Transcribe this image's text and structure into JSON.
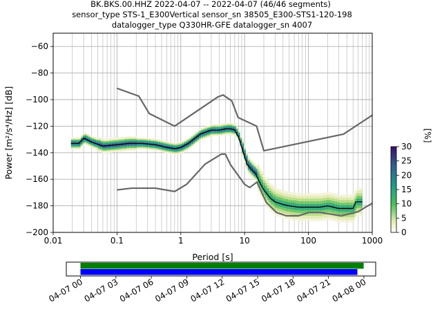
{
  "title_lines": [
    "BK.BKS.00.HHZ   2022-04-07 -- 2022-04-07  (46/46 segments)",
    "sensor_type STS-1_E300Vertical sensor_sn 38505_E300-STS1-120-198",
    "datalogger_type Q330HR-GFE datalogger_sn 4007"
  ],
  "colors": {
    "nlnm_nhnm": "#666666",
    "mean_line": "#000000",
    "timeline_green": "#008000",
    "timeline_blue": "#0000ff",
    "grid": "#b0b0b0"
  },
  "chart_data": [
    {
      "type": "heatmap",
      "xlabel": "Period [s]",
      "ylabel": "Power [m²/s⁴/Hz] [dB]",
      "xscale": "log",
      "xlim": [
        0.01,
        1000
      ],
      "ylim": [
        -200,
        -50
      ],
      "x_ticks": [
        "0.01",
        "0.1",
        "1",
        "10",
        "100",
        "1000"
      ],
      "y_ticks": [
        "−200",
        "−180",
        "−160",
        "−140",
        "−120",
        "−100",
        "−80",
        "−60"
      ],
      "grid": true,
      "colorbar": {
        "label": "[%]",
        "range": [
          0,
          30
        ],
        "ticks": [
          "0",
          "5",
          "10",
          "15",
          "20",
          "25",
          "30"
        ],
        "colormap": "pqlx"
      },
      "series": [
        {
          "name": "",
          "kind": "mean",
          "x": [
            0.019,
            0.025,
            0.03,
            0.04,
            0.06,
            0.1,
            0.15,
            0.25,
            0.4,
            0.6,
            0.8,
            1.0,
            1.3,
            2.0,
            3.0,
            4.0,
            5.0,
            6.0,
            7.0,
            8.0,
            9.0,
            10.0,
            11.0,
            13.0,
            15.0,
            17.0,
            20.0,
            25.0,
            30.0,
            40.0,
            50.0,
            70.0,
            100.0,
            150.0,
            200.0,
            300.0,
            400.0,
            500.0,
            550.0,
            700.0
          ],
          "y": [
            -133,
            -133,
            -129,
            -132,
            -135,
            -134,
            -133,
            -133,
            -134,
            -136,
            -137,
            -136,
            -133,
            -126,
            -123,
            -123,
            -122,
            -122,
            -123,
            -128,
            -136,
            -143,
            -149,
            -153,
            -156,
            -162,
            -168,
            -174,
            -177,
            -179,
            -180,
            -181,
            -181,
            -181,
            -180,
            -182,
            -182,
            -182,
            -177,
            -177
          ]
        },
        {
          "name": "",
          "kind": "nhnm",
          "x": [
            0.1,
            0.22,
            0.32,
            0.8,
            3.8,
            4.6,
            6.3,
            7.9,
            15.4,
            20.0,
            354.8,
            10000
          ],
          "y": [
            -91.5,
            -97.4,
            -110.5,
            -120.0,
            -98.0,
            -96.5,
            -101.0,
            -113.5,
            -120.0,
            -138.5,
            -126.0,
            -80.1
          ]
        },
        {
          "name": "",
          "kind": "nlnm",
          "x": [
            0.1,
            0.17,
            0.4,
            0.8,
            1.24,
            2.4,
            4.3,
            5.0,
            6.0,
            10.0,
            12.0,
            15.6,
            21.9,
            31.6,
            45.0,
            70.0,
            101.0,
            154.0,
            328.0,
            600.0,
            1000.0
          ],
          "y": [
            -168.0,
            -166.7,
            -166.7,
            -169.2,
            -163.7,
            -148.6,
            -141.1,
            -141.1,
            -149.0,
            -163.8,
            -166.2,
            -162.1,
            -177.5,
            -185.0,
            -187.5,
            -187.5,
            -185.0,
            -185.0,
            -187.5,
            -184.4,
            -178.0
          ]
        }
      ]
    },
    {
      "type": "bar",
      "title": "",
      "x_ticks": [
        "04-07 00",
        "04-07 03",
        "04-07 06",
        "04-07 09",
        "04-07 12",
        "04-07 15",
        "04-07 18",
        "04-07 21",
        "04-08 00"
      ],
      "xlim_hours": [
        -1.2,
        25.0
      ],
      "series": [
        {
          "name": "",
          "color": "#008000",
          "start_hour": 0.0,
          "end_hour": 23.98
        },
        {
          "name": "",
          "color": "#0000ff",
          "start_hour": 0.0,
          "end_hour": 23.45
        }
      ]
    }
  ]
}
